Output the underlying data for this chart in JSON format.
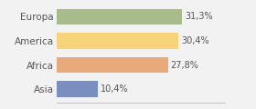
{
  "categories": [
    "Europa",
    "America",
    "Africa",
    "Asia"
  ],
  "values": [
    31.3,
    30.4,
    27.8,
    10.4
  ],
  "labels": [
    "31,3%",
    "30,4%",
    "27,8%",
    "10,4%"
  ],
  "bar_colors": [
    "#a8bb8a",
    "#f5d47a",
    "#e8aa7a",
    "#7a8fc0"
  ],
  "background_color": "#f2f2f2",
  "xlim": [
    0,
    42
  ],
  "bar_height": 0.65,
  "label_fontsize": 7,
  "category_fontsize": 7.5
}
